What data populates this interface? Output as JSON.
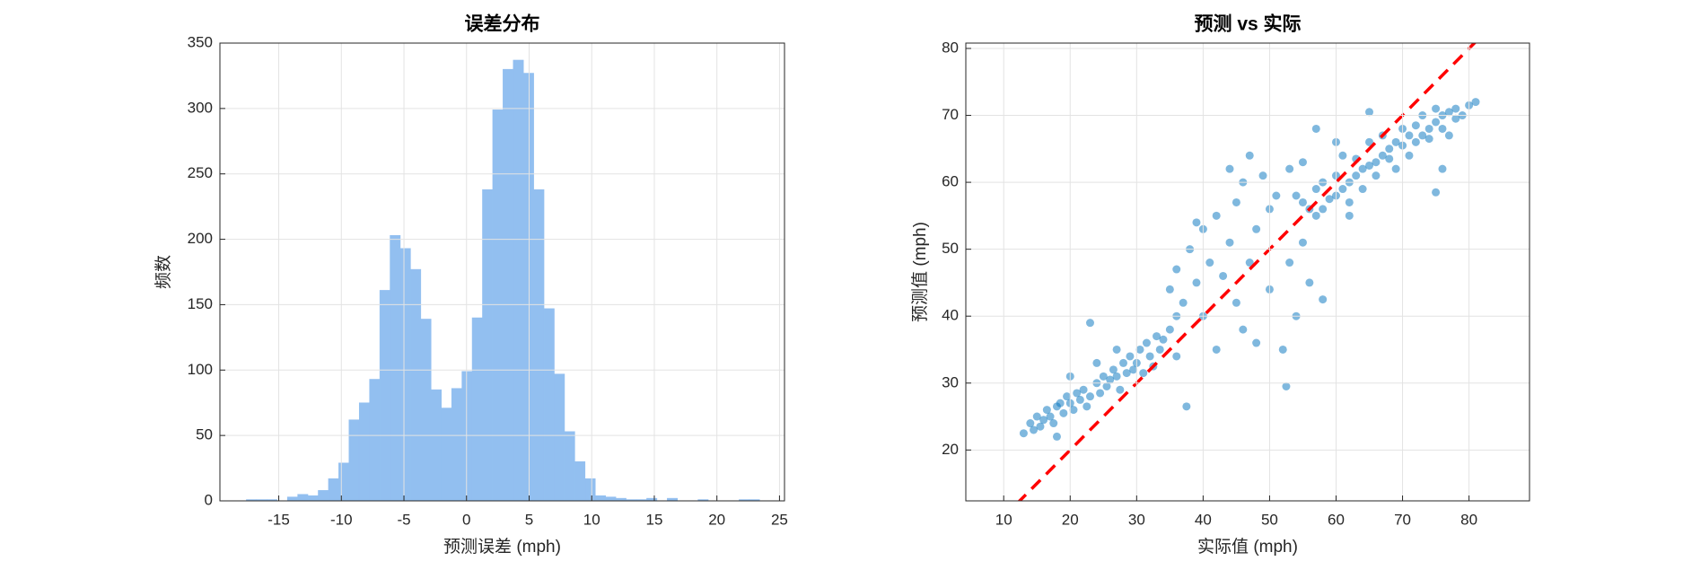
{
  "chart_data": [
    {
      "type": "histogram",
      "title": "误差分布",
      "xlabel": "预测误差 (mph)",
      "ylabel": "频数",
      "color": "#92bff0",
      "grid": true,
      "bins": [
        -17.59,
        -16.77,
        -15.95,
        -15.13,
        -14.31,
        -13.49,
        -12.67,
        -11.85,
        -11.03,
        -10.21,
        -9.39,
        -8.57,
        -7.75,
        -6.93,
        -6.11,
        -5.29,
        -4.47,
        -3.65,
        -2.83,
        -2.01,
        -1.19,
        -0.37,
        0.45,
        1.27,
        2.09,
        2.91,
        3.73,
        4.55,
        5.37,
        6.19,
        7.01,
        7.83,
        8.65,
        9.47,
        10.29,
        11.11,
        11.93,
        12.75,
        13.57,
        14.39,
        15.21,
        16.03,
        16.85,
        17.67,
        18.49,
        19.31,
        20.13,
        20.95,
        21.77,
        22.59,
        23.41
      ],
      "values": [
        1,
        1,
        1,
        0,
        3,
        5,
        4,
        8,
        17,
        29,
        62,
        75,
        93,
        161,
        203,
        193,
        177,
        139,
        85,
        71,
        86,
        99,
        140,
        238,
        299,
        330,
        337,
        327,
        238,
        147,
        97,
        53,
        30,
        17,
        4,
        3,
        2,
        1,
        1,
        2,
        0,
        2,
        0,
        0,
        1,
        0,
        0,
        0,
        1,
        1
      ],
      "xlim": [
        -19.7,
        25.4
      ],
      "xticks": [
        -15,
        -10,
        -5,
        0,
        5,
        10,
        15,
        20,
        25
      ],
      "ylim": [
        0,
        350
      ],
      "yticks": [
        0,
        50,
        100,
        150,
        200,
        250,
        300,
        350
      ]
    },
    {
      "type": "scatter",
      "title": "预测 vs 实际",
      "xlabel": "实际值 (mph)",
      "ylabel": "预测值 (mph)",
      "color": "#0072bd",
      "grid": true,
      "x": [
        13,
        14,
        14.5,
        15,
        15.5,
        16,
        16.5,
        17,
        17.5,
        18,
        18.5,
        19,
        19.5,
        20,
        20.5,
        21,
        21.5,
        22,
        22.5,
        23,
        23,
        24,
        24.5,
        25,
        25.5,
        26,
        26.5,
        27,
        27.5,
        28,
        28.5,
        29,
        29.5,
        30,
        30.5,
        31,
        31.5,
        32,
        32.5,
        33,
        33.5,
        34,
        35,
        36,
        20,
        18,
        24,
        27,
        35,
        36,
        37,
        37.5,
        38,
        39,
        40,
        40,
        41,
        42,
        42,
        43,
        44,
        45,
        45,
        46,
        46,
        47,
        48,
        48,
        49,
        50,
        50,
        51,
        52,
        52.5,
        53,
        53,
        54,
        54,
        55,
        55,
        56,
        57,
        57,
        58,
        44,
        47,
        39,
        36,
        55,
        56,
        57,
        58,
        58,
        59,
        60,
        60,
        61,
        61,
        62,
        62,
        63,
        63,
        64,
        64,
        65,
        65,
        66,
        66,
        67,
        67,
        68,
        68,
        69,
        69,
        70,
        70,
        71,
        71,
        72,
        72,
        73,
        73,
        74,
        74,
        75,
        75,
        76,
        76,
        77,
        77,
        78,
        78,
        79,
        80,
        81,
        76,
        75,
        60,
        62,
        65
      ],
      "y": [
        22.5,
        24,
        23,
        25,
        23.5,
        24.5,
        26,
        25,
        24,
        26.5,
        27,
        25.5,
        28,
        27,
        26,
        28.5,
        27.5,
        29,
        26.5,
        39,
        28,
        30,
        28.5,
        31,
        29.5,
        30.5,
        32,
        31,
        29,
        33,
        31.5,
        34,
        32,
        33,
        35,
        31.5,
        36,
        34,
        32.5,
        37,
        35,
        36.5,
        38,
        34,
        31,
        22,
        33,
        35,
        44,
        47,
        42,
        26.5,
        50,
        45,
        53,
        40,
        48,
        55,
        35,
        46,
        51,
        57,
        42,
        60,
        38,
        48,
        53,
        36,
        61,
        44,
        56,
        58,
        35,
        29.5,
        62,
        48,
        40,
        58,
        63,
        51,
        45,
        55,
        68,
        42.5,
        62,
        64,
        54,
        40,
        57,
        56,
        59,
        60,
        56,
        57.5,
        58,
        61,
        59,
        64,
        60,
        57,
        61,
        63.5,
        62,
        59,
        62.5,
        66,
        63,
        61,
        64,
        67,
        63.5,
        65,
        66,
        62,
        65.5,
        68,
        67,
        64,
        68.5,
        66,
        67,
        70,
        68,
        66.5,
        69,
        71,
        68,
        70,
        70.5,
        67,
        69.5,
        71,
        70,
        71.5,
        72,
        62,
        58.5,
        66,
        55,
        70.5
      ],
      "reference_line": {
        "color": "#ff0000",
        "x": [
          12,
          81.2
        ],
        "y": [
          12,
          81.2
        ]
      },
      "xlim": [
        4.3,
        89.1
      ],
      "xticks": [
        10,
        20,
        30,
        40,
        50,
        60,
        70,
        80
      ],
      "ylim": [
        12.4,
        80.8
      ],
      "yticks": [
        20,
        30,
        40,
        50,
        60,
        70,
        80
      ]
    }
  ]
}
